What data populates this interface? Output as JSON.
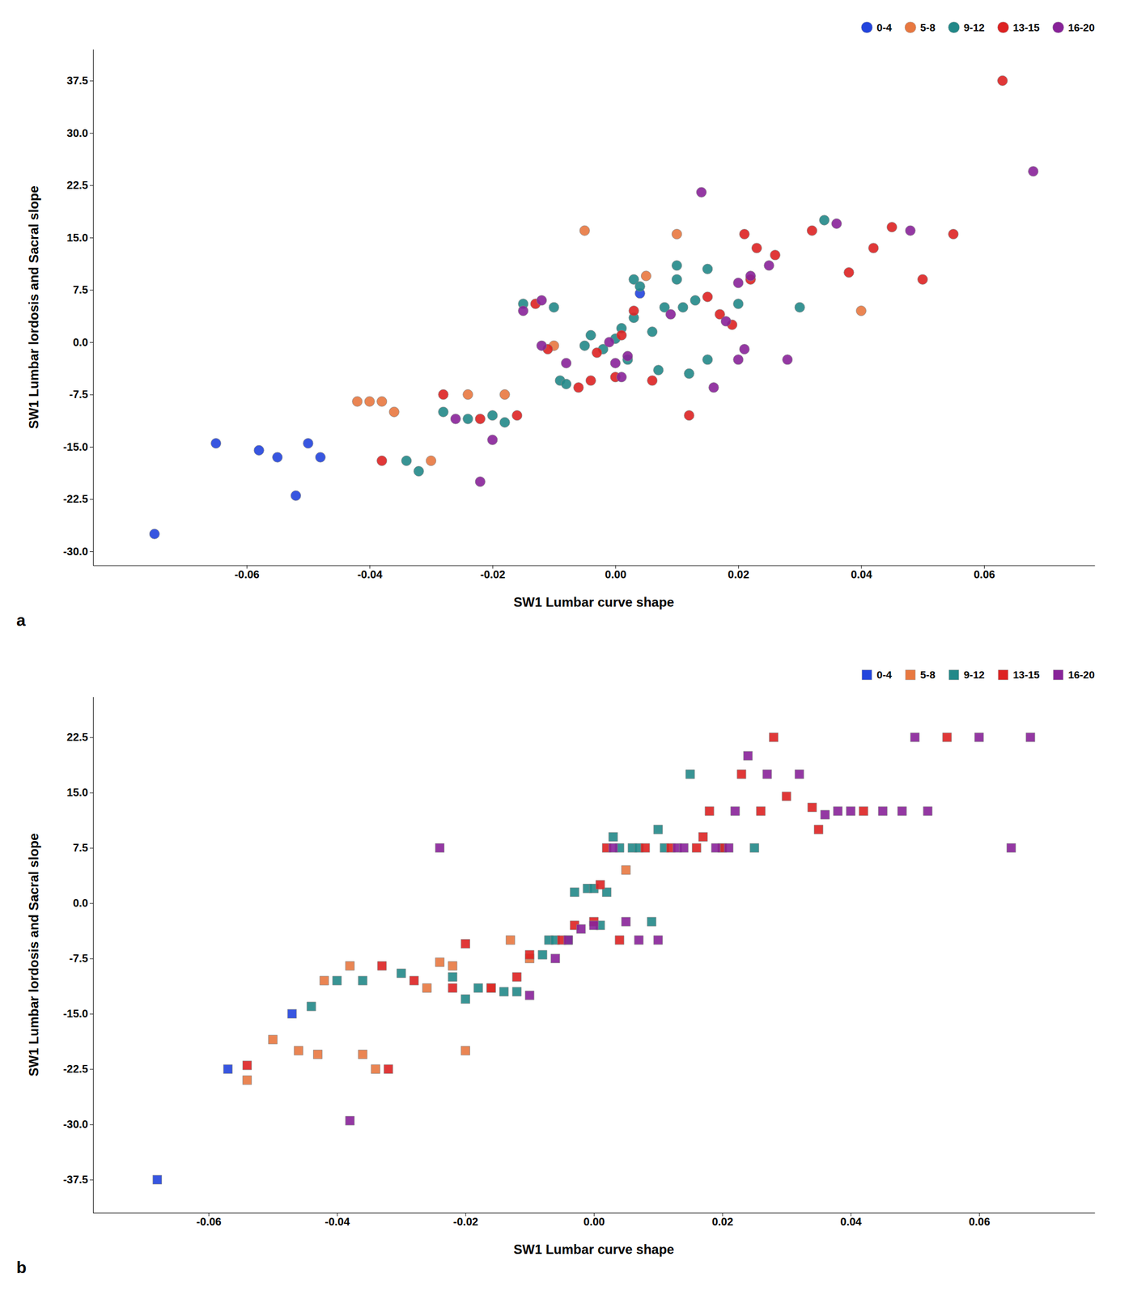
{
  "chart_data": [
    {
      "type": "scatter",
      "xlabel": "SW1 Lumbar curve shape",
      "ylabel": "SW1 Lumbar lordosis and Sacral slope",
      "annotations": [
        "a"
      ],
      "legend": "upper right",
      "grid": false,
      "marker": "circle",
      "xlim": [
        -0.085,
        0.078
      ],
      "ylim": [
        -32,
        42
      ],
      "xticks": [
        -0.06,
        -0.04,
        -0.02,
        {
          "value": 0,
          "label": "0.00"
        },
        0.02,
        0.04,
        0.06
      ],
      "yticks": [
        {
          "value": -30,
          "label": "-30.0"
        },
        -22.5,
        {
          "value": -15,
          "label": "-15.0"
        },
        -7.5,
        {
          "value": 0,
          "label": "0.0"
        },
        7.5,
        {
          "value": 15,
          "label": "15.0"
        },
        22.5,
        {
          "value": 30,
          "label": "30.0"
        },
        37.5
      ],
      "series": [
        {
          "name": "0-4",
          "color": "#2244DD",
          "x": [
            -0.075,
            -0.065,
            -0.058,
            -0.055,
            -0.052,
            -0.05,
            -0.048,
            0.004
          ],
          "values": [
            -27.5,
            -14.5,
            -15.5,
            -16.5,
            -22.0,
            -14.5,
            -16.5,
            7.0
          ]
        },
        {
          "name": "5-8",
          "color": "#E87840",
          "x": [
            -0.042,
            -0.04,
            -0.038,
            -0.036,
            -0.03,
            -0.024,
            -0.018,
            -0.01,
            -0.005,
            0.005,
            0.01,
            0.04
          ],
          "values": [
            -8.5,
            -8.5,
            -8.5,
            -10.0,
            -17.0,
            -7.5,
            -7.5,
            -0.5,
            16.0,
            9.5,
            15.5,
            4.5
          ]
        },
        {
          "name": "9-12",
          "color": "#228888",
          "x": [
            -0.034,
            -0.032,
            -0.028,
            -0.024,
            -0.02,
            -0.018,
            -0.015,
            -0.01,
            -0.009,
            -0.008,
            -0.005,
            -0.004,
            -0.002,
            0.0,
            0.001,
            0.002,
            0.003,
            0.003,
            0.004,
            0.006,
            0.007,
            0.008,
            0.01,
            0.01,
            0.011,
            0.012,
            0.013,
            0.015,
            0.015,
            0.02,
            0.03,
            0.034
          ],
          "values": [
            -17.0,
            -18.5,
            -10.0,
            -11.0,
            -10.5,
            -11.5,
            5.5,
            5.0,
            -5.5,
            -6.0,
            -0.5,
            1.0,
            -1.0,
            0.5,
            2.0,
            -2.5,
            9.0,
            3.5,
            8.0,
            1.5,
            -4.0,
            5.0,
            11.0,
            9.0,
            5.0,
            -4.5,
            6.0,
            -2.5,
            10.5,
            5.5,
            5.0,
            17.5
          ]
        },
        {
          "name": "13-15",
          "color": "#DD2222",
          "x": [
            -0.038,
            -0.028,
            -0.022,
            -0.016,
            -0.013,
            -0.011,
            -0.006,
            -0.004,
            -0.003,
            0.0,
            0.001,
            0.003,
            0.006,
            0.012,
            0.015,
            0.017,
            0.019,
            0.021,
            0.022,
            0.023,
            0.026,
            0.032,
            0.038,
            0.042,
            0.045,
            0.05,
            0.055,
            0.063
          ],
          "values": [
            -17.0,
            -7.5,
            -11.0,
            -10.5,
            5.5,
            -1.0,
            -6.5,
            -5.5,
            -1.5,
            -5.0,
            1.0,
            4.5,
            -5.5,
            -10.5,
            6.5,
            4.0,
            2.5,
            15.5,
            9.0,
            13.5,
            12.5,
            16.0,
            10.0,
            13.5,
            16.5,
            9.0,
            15.5,
            37.5
          ]
        },
        {
          "name": "16-20",
          "color": "#882299",
          "x": [
            -0.026,
            -0.022,
            -0.02,
            -0.015,
            -0.012,
            -0.012,
            -0.008,
            -0.001,
            0.0,
            0.001,
            0.002,
            0.009,
            0.014,
            0.016,
            0.018,
            0.02,
            0.02,
            0.021,
            0.022,
            0.025,
            0.028,
            0.036,
            0.048,
            0.068
          ],
          "values": [
            -11.0,
            -20.0,
            -14.0,
            4.5,
            6.0,
            -0.5,
            -3.0,
            0.0,
            -3.0,
            -5.0,
            -2.0,
            4.0,
            21.5,
            -6.5,
            3.0,
            8.5,
            -2.5,
            -1.0,
            9.5,
            11.0,
            -2.5,
            17.0,
            16.0,
            24.5
          ]
        }
      ]
    },
    {
      "type": "scatter",
      "xlabel": "SW1 Lumbar curve shape",
      "ylabel": "SW1 Lumbar lordosis and Sacral slope",
      "annotations": [
        "b"
      ],
      "legend": "upper right",
      "grid": false,
      "marker": "square",
      "xlim": [
        -0.078,
        0.078
      ],
      "ylim": [
        -42,
        28
      ],
      "xticks": [
        -0.06,
        -0.04,
        -0.02,
        {
          "value": 0,
          "label": "0.00"
        },
        0.02,
        0.04,
        0.06
      ],
      "yticks": [
        -37.5,
        {
          "value": -30,
          "label": "-30.0"
        },
        -22.5,
        {
          "value": -15,
          "label": "-15.0"
        },
        -7.5,
        {
          "value": 0,
          "label": "0.0"
        },
        7.5,
        {
          "value": 15,
          "label": "15.0"
        },
        22.5
      ],
      "series": [
        {
          "name": "0-4",
          "color": "#2244DD",
          "x": [
            -0.068,
            -0.057,
            -0.047
          ],
          "values": [
            -37.5,
            -22.5,
            -15.0
          ]
        },
        {
          "name": "5-8",
          "color": "#E87840",
          "x": [
            -0.054,
            -0.05,
            -0.046,
            -0.043,
            -0.042,
            -0.038,
            -0.036,
            -0.034,
            -0.026,
            -0.024,
            -0.022,
            -0.02,
            -0.016,
            -0.013,
            -0.01,
            0.005
          ],
          "values": [
            -24.0,
            -18.5,
            -20.0,
            -20.5,
            -10.5,
            -8.5,
            -20.5,
            -22.5,
            -11.5,
            -8.0,
            -8.5,
            -20.0,
            -11.5,
            -5.0,
            -7.5,
            4.5
          ]
        },
        {
          "name": "9-12",
          "color": "#228888",
          "x": [
            -0.044,
            -0.04,
            -0.036,
            -0.03,
            -0.022,
            -0.02,
            -0.018,
            -0.014,
            -0.012,
            -0.008,
            -0.007,
            -0.006,
            -0.004,
            -0.003,
            -0.001,
            0.0,
            0.001,
            0.002,
            0.003,
            0.004,
            0.006,
            0.007,
            0.009,
            0.01,
            0.011,
            0.015,
            0.02,
            0.025
          ],
          "values": [
            -14.0,
            -10.5,
            -10.5,
            -9.5,
            -10.0,
            -13.0,
            -11.5,
            -12.0,
            -12.0,
            -7.0,
            -5.0,
            -5.0,
            -5.0,
            1.5,
            2.0,
            2.0,
            -3.0,
            1.5,
            9.0,
            7.5,
            7.5,
            7.5,
            -2.5,
            10.0,
            7.5,
            17.5,
            7.5,
            7.5
          ]
        },
        {
          "name": "13-15",
          "color": "#DD2222",
          "x": [
            -0.054,
            -0.033,
            -0.032,
            -0.028,
            -0.022,
            -0.02,
            -0.016,
            -0.012,
            -0.01,
            -0.005,
            -0.003,
            0.0,
            0.001,
            0.002,
            0.004,
            0.008,
            0.012,
            0.016,
            0.017,
            0.018,
            0.02,
            0.023,
            0.026,
            0.028,
            0.03,
            0.034,
            0.035,
            0.042,
            0.055
          ],
          "values": [
            -22.0,
            -8.5,
            -22.5,
            -10.5,
            -11.5,
            -5.5,
            -11.5,
            -10.0,
            -7.0,
            -5.0,
            -3.0,
            -2.5,
            2.5,
            7.5,
            -5.0,
            7.5,
            7.5,
            7.5,
            9.0,
            12.5,
            7.5,
            17.5,
            12.5,
            22.5,
            14.5,
            13.0,
            10.0,
            12.5,
            22.5
          ]
        },
        {
          "name": "16-20",
          "color": "#882299",
          "x": [
            -0.038,
            -0.024,
            -0.01,
            -0.006,
            -0.004,
            -0.002,
            0.0,
            0.003,
            0.005,
            0.007,
            0.01,
            0.013,
            0.014,
            0.019,
            0.021,
            0.022,
            0.024,
            0.027,
            0.032,
            0.036,
            0.038,
            0.04,
            0.045,
            0.048,
            0.05,
            0.052,
            0.06,
            0.065,
            0.068
          ],
          "values": [
            -29.5,
            7.5,
            -12.5,
            -7.5,
            -5.0,
            -3.5,
            -3.0,
            7.5,
            -2.5,
            -5.0,
            -5.0,
            7.5,
            7.5,
            7.5,
            7.5,
            12.5,
            20.0,
            17.5,
            17.5,
            12.0,
            12.5,
            12.5,
            12.5,
            12.5,
            22.5,
            12.5,
            22.5,
            7.5,
            22.5
          ]
        }
      ]
    }
  ]
}
